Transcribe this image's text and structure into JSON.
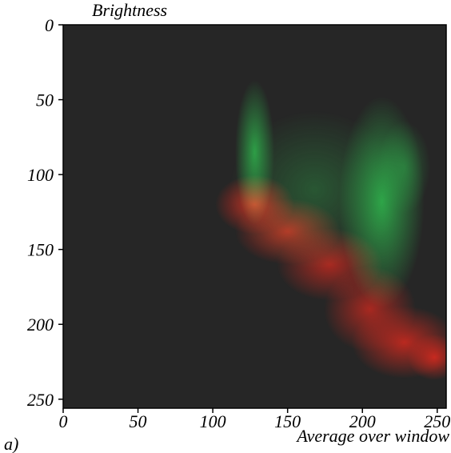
{
  "chart_data": {
    "type": "heatmap",
    "ylabel": "Brightness",
    "xlabel": "Average over window",
    "panel_label": "a)",
    "xlim": [
      0,
      256
    ],
    "ylim": [
      256,
      0
    ],
    "x_ticks": [
      0,
      50,
      100,
      150,
      200,
      250
    ],
    "y_ticks": [
      0,
      50,
      100,
      150,
      200,
      250
    ],
    "background_color": "#262626",
    "series": [
      {
        "color": "#2fb24c",
        "blobs": [
          {
            "x": 128,
            "y": 85,
            "sx": 6,
            "sy": 22,
            "intensity": 0.85
          },
          {
            "x": 213,
            "y": 118,
            "sx": 13,
            "sy": 32,
            "intensity": 0.9
          },
          {
            "x": 168,
            "y": 110,
            "sx": 26,
            "sy": 24,
            "intensity": 0.35
          },
          {
            "x": 228,
            "y": 95,
            "sx": 8,
            "sy": 14,
            "intensity": 0.45
          }
        ]
      },
      {
        "color": "#d42a1f",
        "blobs": [
          {
            "x": 128,
            "y": 120,
            "sx": 12,
            "sy": 9,
            "intensity": 0.9
          },
          {
            "x": 150,
            "y": 138,
            "sx": 16,
            "sy": 10,
            "intensity": 0.8
          },
          {
            "x": 178,
            "y": 160,
            "sx": 16,
            "sy": 11,
            "intensity": 0.75
          },
          {
            "x": 205,
            "y": 190,
            "sx": 14,
            "sy": 13,
            "intensity": 0.75
          },
          {
            "x": 228,
            "y": 212,
            "sx": 16,
            "sy": 11,
            "intensity": 0.85
          },
          {
            "x": 248,
            "y": 222,
            "sx": 8,
            "sy": 7,
            "intensity": 0.9
          }
        ]
      }
    ]
  }
}
